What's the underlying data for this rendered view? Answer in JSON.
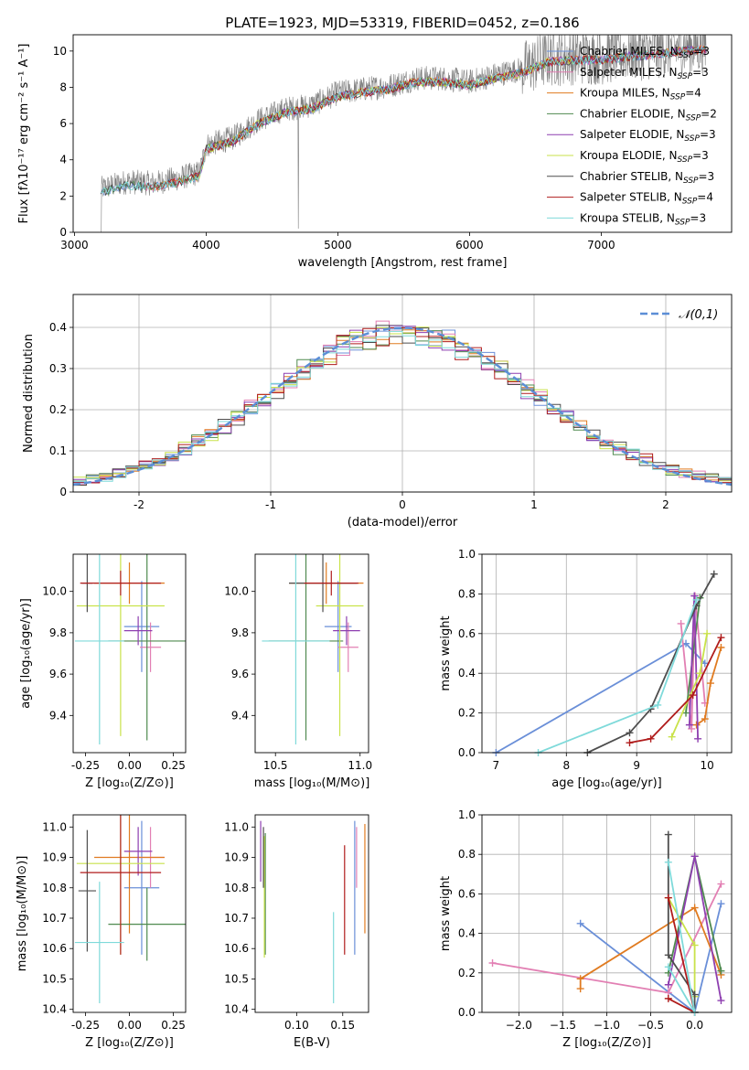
{
  "figure_title": "PLATE=1923, MJD=53319, FIBERID=0452, z=0.186",
  "colors": {
    "Chabrier MILES": "#6a8fd8",
    "Salpeter MILES": "#e27fb3",
    "Kroupa MILES": "#e07b21",
    "Chabrier ELODIE": "#4f8a4f",
    "Salpeter ELODIE": "#8e3fb0",
    "Kroupa ELODIE": "#c9e24a",
    "Chabrier STELIB": "#4d4d4d",
    "Salpeter STELIB": "#b01c1c",
    "Kroupa STELIB": "#7fdada",
    "data": "#808080",
    "normal": "#5b8ed6"
  },
  "chart_data": [
    {
      "type": "line",
      "id": "spectrum",
      "title": "PLATE=1923, MJD=53319, FIBERID=0452, z=0.186",
      "xlabel": "wavelength [Angstrom, rest frame]",
      "ylabel": "Flux [fλ10⁻¹⁷ erg cm⁻² s⁻¹ A⁻¹]",
      "xlim": [
        2990,
        7990
      ],
      "ylim": [
        0,
        10.9
      ],
      "xticks": [
        3000,
        4000,
        5000,
        6000,
        7000
      ],
      "yticks": [
        0,
        2,
        4,
        6,
        8,
        10
      ],
      "legend_position": "right",
      "series": [
        {
          "name": "Chabrier MILES, N_SSP=3",
          "label": "Chabrier MILES, N",
          "sub": "SSP",
          "tail": "=3"
        },
        {
          "name": "Salpeter MILES, N_SSP=3",
          "label": "Salpeter MILES, N",
          "sub": "SSP",
          "tail": "=3"
        },
        {
          "name": "Kroupa MILES, N_SSP=4",
          "label": "Kroupa MILES, N",
          "sub": "SSP",
          "tail": "=4"
        },
        {
          "name": "Chabrier ELODIE, N_SSP=2",
          "label": "Chabrier ELODIE, N",
          "sub": "SSP",
          "tail": "=2"
        },
        {
          "name": "Salpeter ELODIE, N_SSP=3",
          "label": "Salpeter ELODIE, N",
          "sub": "SSP",
          "tail": "=3"
        },
        {
          "name": "Kroupa ELODIE, N_SSP=3",
          "label": "Kroupa ELODIE, N",
          "sub": "SSP",
          "tail": "=3"
        },
        {
          "name": "Chabrier STELIB, N_SSP=3",
          "label": "Chabrier STELIB, N",
          "sub": "SSP",
          "tail": "=3"
        },
        {
          "name": "Salpeter STELIB, N_SSP=4",
          "label": "Salpeter STELIB, N",
          "sub": "SSP",
          "tail": "=4"
        },
        {
          "name": "Kroupa STELIB, N_SSP=3",
          "label": "Kroupa STELIB, N",
          "sub": "SSP",
          "tail": "=3"
        }
      ],
      "continuum_points": [
        [
          3200,
          2.4
        ],
        [
          3400,
          2.8
        ],
        [
          3600,
          2.7
        ],
        [
          3800,
          3.0
        ],
        [
          3950,
          3.3
        ],
        [
          4000,
          4.8
        ],
        [
          4200,
          5.2
        ],
        [
          4400,
          6.2
        ],
        [
          4600,
          6.8
        ],
        [
          4800,
          7.0
        ],
        [
          5000,
          7.7
        ],
        [
          5200,
          7.9
        ],
        [
          5400,
          8.1
        ],
        [
          5600,
          8.5
        ],
        [
          5800,
          8.5
        ],
        [
          6000,
          8.3
        ],
        [
          6200,
          8.7
        ],
        [
          6400,
          9.0
        ],
        [
          6600,
          9.6
        ],
        [
          6800,
          9.7
        ],
        [
          7000,
          9.7
        ],
        [
          7200,
          9.9
        ],
        [
          7400,
          10.0
        ],
        [
          7600,
          10.2
        ],
        [
          7800,
          10.3
        ]
      ]
    },
    {
      "type": "line",
      "id": "residuals",
      "xlabel": "(data-model)/error",
      "ylabel": "Normed distribution",
      "xlim": [
        -2.5,
        2.5
      ],
      "ylim": [
        0,
        0.48
      ],
      "xticks": [
        -2,
        -1,
        0,
        1,
        2
      ],
      "yticks": [
        0.0,
        0.1,
        0.2,
        0.3,
        0.4
      ],
      "grid": true,
      "legend_position": "top-right",
      "reference": {
        "name": "𝒩(0,1)",
        "mean": 0,
        "sigma": 1
      }
    },
    {
      "type": "scatter",
      "id": "age-vs-z",
      "xlabel": "Z [log₁₀(Z/Z⊙)]",
      "ylabel": "age  [log₁₀(age/yr)]",
      "xlim": [
        -0.32,
        0.32
      ],
      "ylim": [
        9.22,
        10.18
      ],
      "xticks": [
        "-0.25",
        "0.00",
        "0.25"
      ],
      "yticks": [
        "9.4",
        "9.6",
        "9.8",
        "10.0"
      ],
      "points": [
        {
          "series": "Chabrier MILES",
          "x": 0.07,
          "y": 9.83,
          "xerr": 0.1,
          "yerr": 0.22
        },
        {
          "series": "Salpeter MILES",
          "x": 0.12,
          "y": 9.73,
          "xerr": 0.06,
          "yerr": 0.12
        },
        {
          "series": "Kroupa MILES",
          "x": 0.0,
          "y": 10.04,
          "xerr": 0.2,
          "yerr": 0.1
        },
        {
          "series": "Chabrier ELODIE",
          "x": 0.1,
          "y": 9.76,
          "xerr": 0.22,
          "yerr": 0.48
        },
        {
          "series": "Salpeter ELODIE",
          "x": 0.05,
          "y": 9.81,
          "xerr": 0.08,
          "yerr": 0.07
        },
        {
          "series": "Kroupa ELODIE",
          "x": -0.05,
          "y": 9.93,
          "xerr": 0.25,
          "yerr": 0.63
        },
        {
          "series": "Chabrier STELIB",
          "x": -0.24,
          "y": 10.04,
          "xerr": 0.03,
          "yerr": 0.14
        },
        {
          "series": "Salpeter STELIB",
          "x": -0.05,
          "y": 10.04,
          "xerr": 0.23,
          "yerr": 0.06
        },
        {
          "series": "Kroupa STELIB",
          "x": -0.17,
          "y": 9.76,
          "xerr": 0.14,
          "yerr": 0.5
        }
      ]
    },
    {
      "type": "scatter",
      "id": "age-vs-mass",
      "xlabel": "mass [log₁₀(M/M⊙)]",
      "ylabel": "",
      "xlim": [
        10.38,
        11.05
      ],
      "ylim": [
        9.22,
        10.18
      ],
      "xticks": [
        "10.5",
        "11.0"
      ],
      "yticks": [
        "9.4",
        "9.6",
        "9.8",
        "10.0"
      ],
      "points": [
        {
          "series": "Chabrier MILES",
          "x": 10.87,
          "y": 9.83,
          "xerr": 0.08,
          "yerr": 0.22
        },
        {
          "series": "Salpeter MILES",
          "x": 10.93,
          "y": 9.73,
          "xerr": 0.06,
          "yerr": 0.12
        },
        {
          "series": "Kroupa MILES",
          "x": 10.8,
          "y": 10.04,
          "xerr": 0.22,
          "yerr": 0.1
        },
        {
          "series": "Chabrier ELODIE",
          "x": 10.68,
          "y": 9.76,
          "xerr": 0.22,
          "yerr": 0.48
        },
        {
          "series": "Salpeter ELODIE",
          "x": 10.92,
          "y": 9.81,
          "xerr": 0.08,
          "yerr": 0.07
        },
        {
          "series": "Kroupa ELODIE",
          "x": 10.88,
          "y": 9.93,
          "xerr": 0.14,
          "yerr": 0.63
        },
        {
          "series": "Chabrier STELIB",
          "x": 10.78,
          "y": 10.04,
          "xerr": 0.2,
          "yerr": 0.14
        },
        {
          "series": "Salpeter STELIB",
          "x": 10.83,
          "y": 10.04,
          "xerr": 0.16,
          "yerr": 0.06
        },
        {
          "series": "Kroupa STELIB",
          "x": 10.62,
          "y": 9.76,
          "xerr": 0.2,
          "yerr": 0.5
        }
      ]
    },
    {
      "type": "line",
      "id": "weight-vs-age",
      "xlabel": "age  [log₁₀(age/yr)]",
      "ylabel": "mass weight",
      "xlim": [
        6.8,
        10.35
      ],
      "ylim": [
        0,
        1.0
      ],
      "xticks": [
        "7",
        "8",
        "9",
        "10"
      ],
      "yticks": [
        "0.0",
        "0.2",
        "0.4",
        "0.6",
        "0.8",
        "1.0"
      ],
      "grid": true,
      "series": [
        {
          "name": "Chabrier MILES",
          "points": [
            [
              7.0,
              0.0
            ],
            [
              9.7,
              0.55
            ],
            [
              9.97,
              0.45
            ]
          ]
        },
        {
          "name": "Salpeter MILES",
          "points": [
            [
              9.63,
              0.65
            ],
            [
              9.78,
              0.12
            ],
            [
              9.83,
              0.79
            ],
            [
              9.97,
              0.25
            ]
          ]
        },
        {
          "name": "Kroupa MILES",
          "points": [
            [
              9.85,
              0.14
            ],
            [
              9.97,
              0.17
            ],
            [
              10.05,
              0.35
            ],
            [
              10.2,
              0.53
            ]
          ]
        },
        {
          "name": "Chabrier ELODIE",
          "points": [
            [
              9.7,
              0.2
            ],
            [
              9.9,
              0.78
            ]
          ]
        },
        {
          "name": "Salpeter ELODIE",
          "points": [
            [
              9.75,
              0.14
            ],
            [
              9.82,
              0.79
            ],
            [
              9.87,
              0.07
            ]
          ]
        },
        {
          "name": "Kroupa ELODIE",
          "points": [
            [
              9.5,
              0.08
            ],
            [
              9.9,
              0.4
            ],
            [
              10.0,
              0.6
            ]
          ]
        },
        {
          "name": "Chabrier STELIB",
          "points": [
            [
              8.3,
              0.0
            ],
            [
              8.9,
              0.1
            ],
            [
              9.2,
              0.22
            ],
            [
              9.85,
              0.74
            ],
            [
              10.1,
              0.9
            ]
          ]
        },
        {
          "name": "Salpeter STELIB",
          "points": [
            [
              8.9,
              0.05
            ],
            [
              9.2,
              0.07
            ],
            [
              9.8,
              0.29
            ],
            [
              10.2,
              0.58
            ]
          ]
        },
        {
          "name": "Kroupa STELIB",
          "points": [
            [
              7.6,
              0.0
            ],
            [
              9.3,
              0.24
            ],
            [
              9.85,
              0.77
            ]
          ]
        }
      ]
    },
    {
      "type": "scatter",
      "id": "mass-vs-z",
      "xlabel": "Z [log₁₀(Z/Z⊙)]",
      "ylabel": "mass [log₁₀(M/M⊙)]",
      "xlim": [
        -0.32,
        0.32
      ],
      "ylim": [
        10.39,
        11.04
      ],
      "xticks": [
        "-0.25",
        "0.00",
        "0.25"
      ],
      "yticks": [
        "10.4",
        "10.5",
        "10.6",
        "10.7",
        "10.8",
        "10.9",
        "11.0"
      ],
      "points": [
        {
          "series": "Chabrier MILES",
          "x": 0.07,
          "y": 10.8,
          "xerr": 0.1,
          "yerr": 0.22
        },
        {
          "series": "Salpeter MILES",
          "x": 0.12,
          "y": 10.9,
          "xerr": 0.08,
          "yerr": 0.1
        },
        {
          "series": "Kroupa MILES",
          "x": 0.0,
          "y": 10.9,
          "xerr": 0.2,
          "yerr": 0.25
        },
        {
          "series": "Chabrier ELODIE",
          "x": 0.1,
          "y": 10.68,
          "xerr": 0.22,
          "yerr": 0.12
        },
        {
          "series": "Salpeter ELODIE",
          "x": 0.05,
          "y": 10.92,
          "xerr": 0.08,
          "yerr": 0.08
        },
        {
          "series": "Kroupa ELODIE",
          "x": -0.05,
          "y": 10.88,
          "xerr": 0.25,
          "yerr": 0.3
        },
        {
          "series": "Chabrier STELIB",
          "x": -0.24,
          "y": 10.79,
          "xerr": 0.05,
          "yerr": 0.2
        },
        {
          "series": "Salpeter STELIB",
          "x": -0.05,
          "y": 10.85,
          "xerr": 0.23,
          "yerr": 0.27
        },
        {
          "series": "Kroupa STELIB",
          "x": -0.17,
          "y": 10.62,
          "xerr": 0.14,
          "yerr": 0.2
        }
      ]
    },
    {
      "type": "scatter",
      "id": "mass-vs-ebv",
      "xlabel": "E(B-V)",
      "ylabel": "",
      "xlim": [
        0.055,
        0.178
      ],
      "ylim": [
        10.39,
        11.04
      ],
      "xticks": [
        "0.10",
        "0.15"
      ],
      "yticks": [
        "10.4",
        "10.5",
        "10.6",
        "10.7",
        "10.8",
        "10.9",
        "11.0"
      ],
      "points": [
        {
          "series": "Chabrier MILES",
          "x": 0.163,
          "y": 10.8,
          "yerr": 0.22
        },
        {
          "series": "Salpeter MILES",
          "x": 0.165,
          "y": 10.9,
          "yerr": 0.1
        },
        {
          "series": "Kroupa MILES",
          "x": 0.174,
          "y": 10.83,
          "yerr": 0.18
        },
        {
          "series": "Chabrier ELODIE",
          "x": 0.066,
          "y": 10.78,
          "yerr": 0.2
        },
        {
          "series": "Salpeter ELODIE",
          "x": 0.061,
          "y": 10.92,
          "yerr": 0.1
        },
        {
          "series": "Kroupa ELODIE",
          "x": 0.065,
          "y": 10.77,
          "yerr": 0.2
        },
        {
          "series": "Chabrier STELIB",
          "x": 0.064,
          "y": 10.9,
          "yerr": 0.1
        },
        {
          "series": "Salpeter STELIB",
          "x": 0.152,
          "y": 10.76,
          "yerr": 0.18
        },
        {
          "series": "Kroupa STELIB",
          "x": 0.14,
          "y": 10.57,
          "yerr": 0.15
        }
      ]
    },
    {
      "type": "line",
      "id": "weight-vs-z",
      "xlabel": "Z [log₁₀(Z/Z⊙)]",
      "ylabel": "mass weight",
      "xlim": [
        -2.42,
        0.42
      ],
      "ylim": [
        0,
        1.0
      ],
      "xticks": [
        "−2.0",
        "−1.5",
        "−1.0",
        "−0.5",
        "0.0"
      ],
      "yticks": [
        "0.0",
        "0.2",
        "0.4",
        "0.6",
        "0.8",
        "1.0"
      ],
      "grid": true,
      "series": [
        {
          "name": "Chabrier MILES",
          "points": [
            [
              -1.3,
              0.45
            ],
            [
              0.0,
              0.0
            ],
            [
              0.3,
              0.55
            ]
          ]
        },
        {
          "name": "Salpeter MILES",
          "points": [
            [
              -2.3,
              0.25
            ],
            [
              -0.3,
              0.1
            ],
            [
              0.3,
              0.65
            ]
          ]
        },
        {
          "name": "Kroupa MILES",
          "points": [
            [
              -1.3,
              0.12
            ],
            [
              -1.3,
              0.17
            ],
            [
              0.0,
              0.53
            ],
            [
              0.3,
              0.19
            ]
          ]
        },
        {
          "name": "Chabrier ELODIE",
          "points": [
            [
              -0.3,
              0.2
            ],
            [
              0.0,
              0.79
            ],
            [
              0.3,
              0.21
            ]
          ]
        },
        {
          "name": "Salpeter ELODIE",
          "points": [
            [
              -0.3,
              0.14
            ],
            [
              0.0,
              0.79
            ],
            [
              0.3,
              0.06
            ]
          ]
        },
        {
          "name": "Kroupa ELODIE",
          "points": [
            [
              -0.3,
              0.58
            ],
            [
              0.0,
              0.34
            ],
            [
              0.0,
              0.08
            ]
          ]
        },
        {
          "name": "Chabrier STELIB",
          "points": [
            [
              -0.3,
              0.9
            ],
            [
              -0.3,
              0.29
            ],
            [
              0.0,
              0.09
            ],
            [
              0.0,
              0.0
            ]
          ]
        },
        {
          "name": "Salpeter STELIB",
          "points": [
            [
              -0.3,
              0.58
            ],
            [
              0.0,
              0.0
            ],
            [
              -0.3,
              0.07
            ]
          ]
        },
        {
          "name": "Kroupa STELIB",
          "points": [
            [
              -0.3,
              0.76
            ],
            [
              0.0,
              0.0
            ],
            [
              -0.3,
              0.23
            ]
          ]
        }
      ]
    }
  ]
}
